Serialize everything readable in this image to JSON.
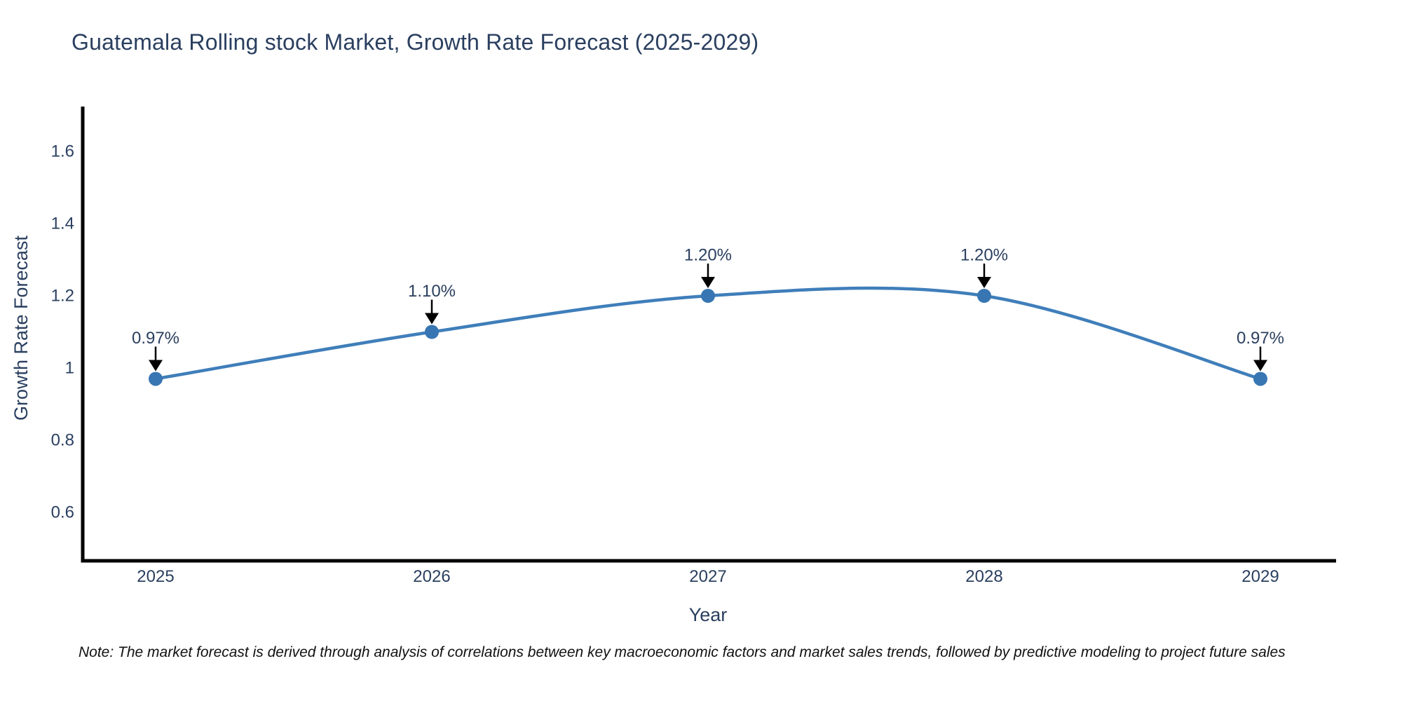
{
  "page": {
    "title": "Guatemala Rolling stock Market, Growth Rate Forecast (2025-2029)",
    "note": "Note: The market forecast is derived through analysis of correlations between key macroeconomic factors and market sales trends, followed by predictive modeling to project future sales"
  },
  "chart_data": {
    "type": "line",
    "title": "Guatemala Rolling stock Market, Growth Rate Forecast (2025-2029)",
    "xlabel": "Year",
    "ylabel": "Growth Rate Forecast",
    "x": [
      2025,
      2026,
      2027,
      2028,
      2029
    ],
    "x_tick_labels": [
      "2025",
      "2026",
      "2027",
      "2028",
      "2029"
    ],
    "y_tick_labels": [
      "0.6",
      "0.8",
      "1",
      "1.2",
      "1.4",
      "1.6"
    ],
    "y_tick_values": [
      0.6,
      0.8,
      1,
      1.2,
      1.4,
      1.6
    ],
    "ylim": [
      0.47,
      1.73
    ],
    "grid": false,
    "legend": "none",
    "line_shape": "spline",
    "series": [
      {
        "name": "Growth Rate Forecast",
        "values": [
          0.97,
          1.1,
          1.2,
          1.2,
          0.97
        ],
        "point_labels": [
          "0.97%",
          "1.10%",
          "1.20%",
          "1.20%",
          "0.97%"
        ]
      }
    ],
    "colors": {
      "line": "#3f7eba",
      "marker": "#3876b3",
      "axis_line": "#000000",
      "text": "#2a3f5f",
      "annotation_arrow": "#000000",
      "background": "#ffffff"
    }
  }
}
